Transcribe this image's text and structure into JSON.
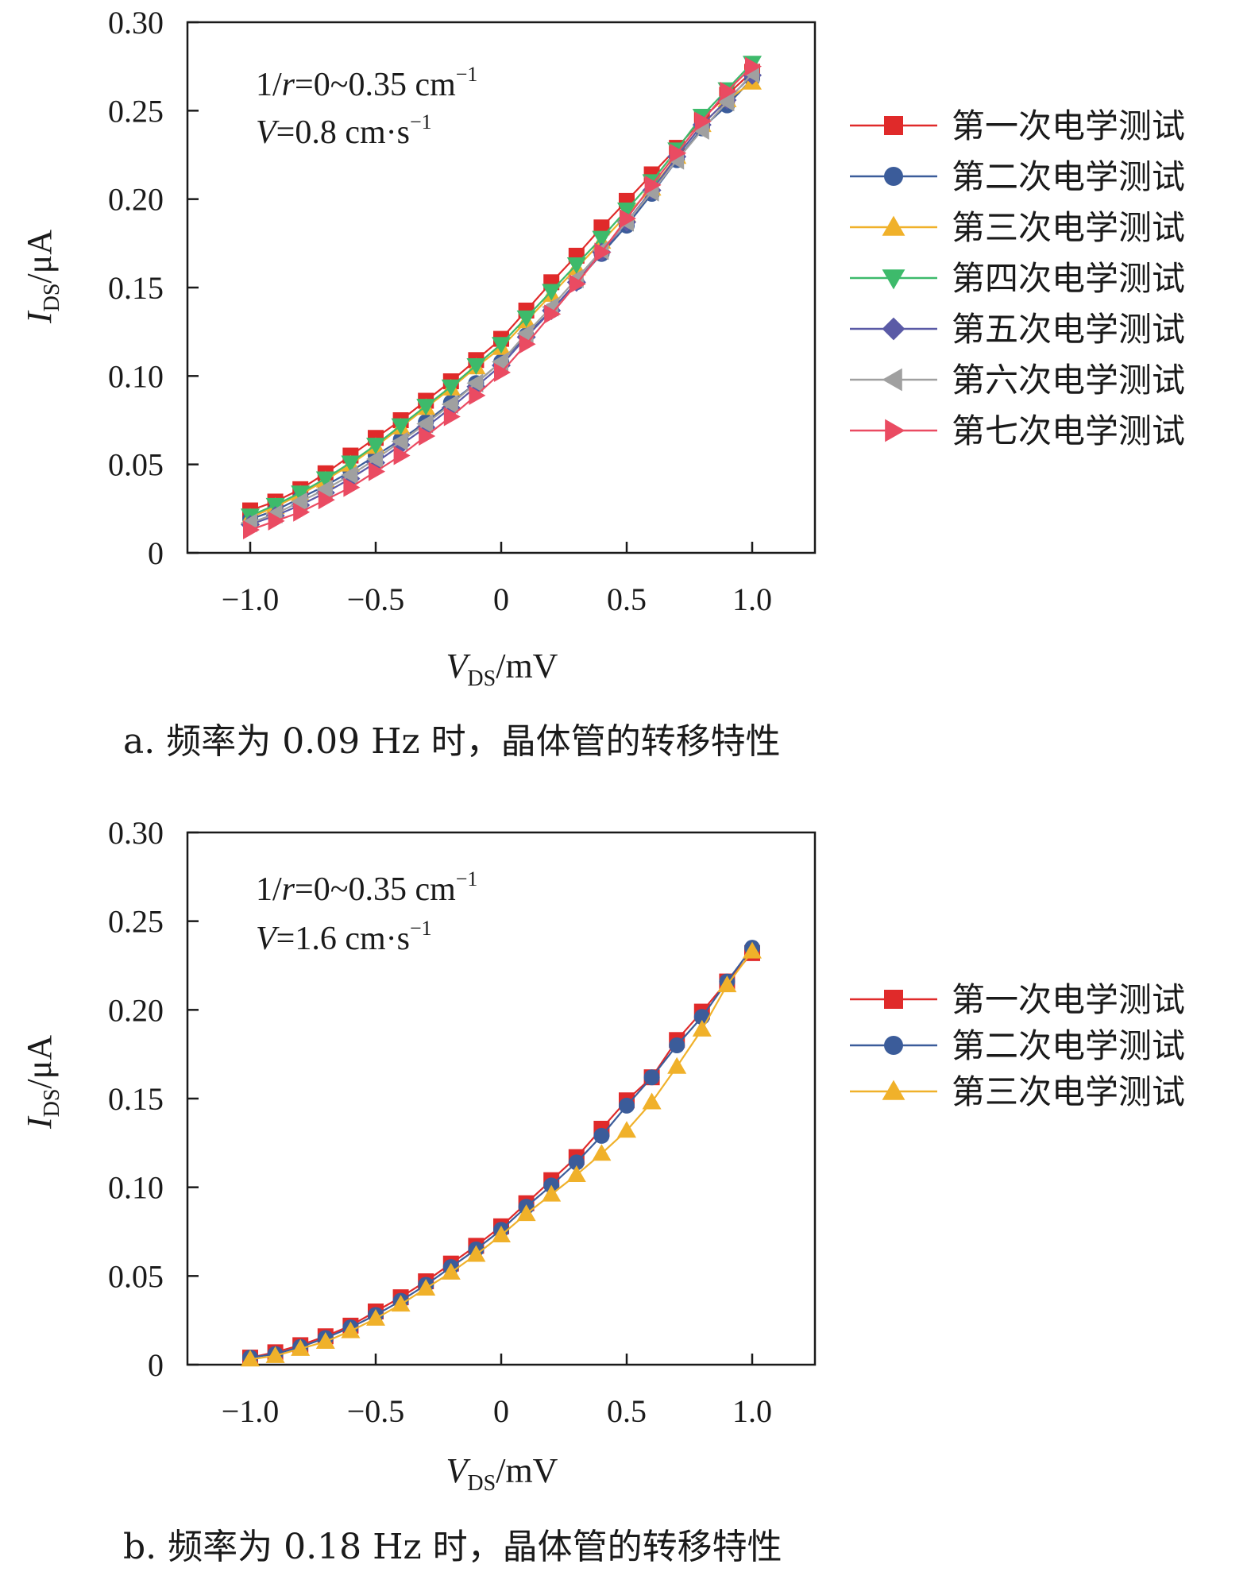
{
  "chart_data": [
    {
      "type": "line",
      "panel_caption": "a. 频率为 0.09 Hz 时，晶体管的转移特性",
      "xlabel": "V",
      "xlabel_sub": "DS",
      "xlabel_unit": "/mV",
      "ylabel": "I",
      "ylabel_sub": "DS",
      "ylabel_unit": "/μA",
      "xlim": [
        -1.25,
        1.25
      ],
      "ylim": [
        0,
        0.3
      ],
      "x_ticks": [
        -1.0,
        -0.5,
        0,
        0.5,
        1.0
      ],
      "x_tick_labels": [
        "−1.0",
        "−0.5",
        "0",
        "0.5",
        "1.0"
      ],
      "y_ticks": [
        0,
        0.05,
        0.1,
        0.15,
        0.2,
        0.25,
        0.3
      ],
      "y_tick_labels": [
        "0",
        "0.05",
        "0.10",
        "0.15",
        "0.20",
        "0.25",
        "0.30"
      ],
      "annotation_line1": {
        "a": "1/",
        "b": "r",
        "c": "=0~0.35 cm",
        "sup": "−1"
      },
      "annotation_line2": {
        "a": "V",
        "b": "=0.8 cm·s",
        "sup": "−1"
      },
      "legend_position": "outside-right",
      "x": [
        -1.0,
        -0.9,
        -0.8,
        -0.7,
        -0.6,
        -0.5,
        -0.4,
        -0.3,
        -0.2,
        -0.1,
        0.0,
        0.1,
        0.2,
        0.3,
        0.4,
        0.5,
        0.6,
        0.7,
        0.8,
        0.9,
        1.0
      ],
      "series": [
        {
          "name": "第一次电学测试",
          "color": "#e02a2a",
          "marker": "square",
          "values": [
            0.024,
            0.029,
            0.036,
            0.045,
            0.055,
            0.065,
            0.075,
            0.086,
            0.097,
            0.109,
            0.121,
            0.137,
            0.153,
            0.168,
            0.184,
            0.199,
            0.214,
            0.229,
            0.245,
            0.259,
            0.272
          ]
        },
        {
          "name": "第二次电学测试",
          "color": "#3b5c9a",
          "marker": "circle",
          "values": [
            0.019,
            0.024,
            0.031,
            0.038,
            0.046,
            0.055,
            0.064,
            0.074,
            0.085,
            0.096,
            0.108,
            0.123,
            0.137,
            0.153,
            0.169,
            0.185,
            0.203,
            0.222,
            0.24,
            0.253,
            0.268
          ]
        },
        {
          "name": "第三次电学测试",
          "color": "#f0b12a",
          "marker": "triangle-up",
          "values": [
            0.02,
            0.026,
            0.033,
            0.041,
            0.05,
            0.06,
            0.071,
            0.082,
            0.093,
            0.105,
            0.116,
            0.131,
            0.146,
            0.161,
            0.176,
            0.191,
            0.206,
            0.224,
            0.242,
            0.256,
            0.266
          ]
        },
        {
          "name": "第四次电学测试",
          "color": "#3dba6b",
          "marker": "triangle-down",
          "values": [
            0.021,
            0.027,
            0.034,
            0.042,
            0.051,
            0.061,
            0.072,
            0.083,
            0.094,
            0.106,
            0.118,
            0.133,
            0.148,
            0.163,
            0.178,
            0.194,
            0.21,
            0.228,
            0.247,
            0.262,
            0.277
          ]
        },
        {
          "name": "第五次电学测试",
          "color": "#5a5aa6",
          "marker": "diamond",
          "values": [
            0.016,
            0.021,
            0.027,
            0.034,
            0.042,
            0.051,
            0.061,
            0.071,
            0.082,
            0.094,
            0.106,
            0.122,
            0.137,
            0.153,
            0.17,
            0.187,
            0.205,
            0.224,
            0.242,
            0.256,
            0.27
          ]
        },
        {
          "name": "第六次电学测试",
          "color": "#a0a0a0",
          "marker": "triangle-left",
          "values": [
            0.017,
            0.022,
            0.029,
            0.036,
            0.044,
            0.053,
            0.063,
            0.073,
            0.084,
            0.096,
            0.108,
            0.124,
            0.139,
            0.155,
            0.171,
            0.187,
            0.204,
            0.222,
            0.239,
            0.255,
            0.271
          ]
        },
        {
          "name": "第七次电学测试",
          "color": "#ea4b62",
          "marker": "triangle-right",
          "values": [
            0.013,
            0.018,
            0.023,
            0.03,
            0.037,
            0.046,
            0.055,
            0.066,
            0.077,
            0.089,
            0.102,
            0.118,
            0.135,
            0.152,
            0.17,
            0.189,
            0.208,
            0.226,
            0.244,
            0.261,
            0.275
          ]
        }
      ]
    },
    {
      "type": "line",
      "panel_caption": "b. 频率为 0.18 Hz 时，晶体管的转移特性",
      "xlabel": "V",
      "xlabel_sub": "DS",
      "xlabel_unit": "/mV",
      "ylabel": "I",
      "ylabel_sub": "DS",
      "ylabel_unit": "/μA",
      "xlim": [
        -1.25,
        1.25
      ],
      "ylim": [
        0,
        0.3
      ],
      "x_ticks": [
        -1.0,
        -0.5,
        0,
        0.5,
        1.0
      ],
      "x_tick_labels": [
        "−1.0",
        "−0.5",
        "0",
        "0.5",
        "1.0"
      ],
      "y_ticks": [
        0,
        0.05,
        0.1,
        0.15,
        0.2,
        0.25,
        0.3
      ],
      "y_tick_labels": [
        "0",
        "0.05",
        "0.10",
        "0.15",
        "0.20",
        "0.25",
        "0.30"
      ],
      "annotation_line1": {
        "a": "1/",
        "b": "r",
        "c": "=0~0.35 cm",
        "sup": "−1"
      },
      "annotation_line2": {
        "a": "V",
        "b": "=1.6 cm·s",
        "sup": "−1"
      },
      "legend_position": "outside-right",
      "x": [
        -1.0,
        -0.9,
        -0.8,
        -0.7,
        -0.6,
        -0.5,
        -0.4,
        -0.3,
        -0.2,
        -0.1,
        0.0,
        0.1,
        0.2,
        0.3,
        0.4,
        0.5,
        0.6,
        0.7,
        0.8,
        0.9,
        1.0
      ],
      "series": [
        {
          "name": "第一次电学测试",
          "color": "#e02a2a",
          "marker": "square",
          "values": [
            0.004,
            0.007,
            0.011,
            0.016,
            0.022,
            0.03,
            0.038,
            0.047,
            0.057,
            0.067,
            0.078,
            0.091,
            0.104,
            0.117,
            0.133,
            0.149,
            0.162,
            0.183,
            0.199,
            0.216,
            0.232
          ]
        },
        {
          "name": "第二次电学测试",
          "color": "#3b5c9a",
          "marker": "circle",
          "values": [
            0.004,
            0.006,
            0.01,
            0.015,
            0.021,
            0.028,
            0.036,
            0.045,
            0.055,
            0.065,
            0.076,
            0.089,
            0.101,
            0.114,
            0.129,
            0.146,
            0.162,
            0.18,
            0.196,
            0.216,
            0.235
          ]
        },
        {
          "name": "第三次电学测试",
          "color": "#f0b12a",
          "marker": "triangle-up",
          "values": [
            0.003,
            0.005,
            0.009,
            0.013,
            0.019,
            0.026,
            0.034,
            0.043,
            0.052,
            0.062,
            0.073,
            0.085,
            0.096,
            0.107,
            0.119,
            0.132,
            0.148,
            0.168,
            0.189,
            0.214,
            0.233
          ]
        }
      ]
    }
  ]
}
